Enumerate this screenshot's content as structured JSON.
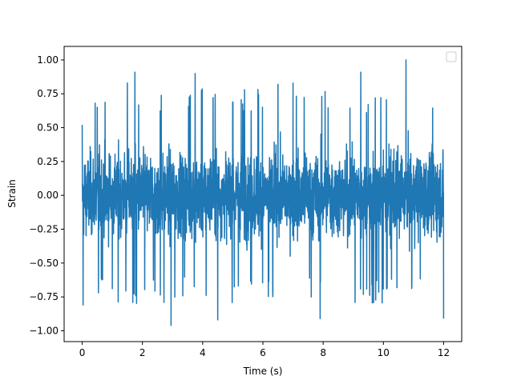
{
  "chart_data": {
    "type": "line",
    "title": "",
    "xlabel": "Time (s)",
    "ylabel": "Strain",
    "xlim": [
      -0.6,
      12.6
    ],
    "ylim": [
      -1.08,
      1.1
    ],
    "xticks": [
      0,
      2,
      4,
      6,
      8,
      10,
      12
    ],
    "xtick_labels": [
      "0",
      "2",
      "4",
      "6",
      "8",
      "10",
      "12"
    ],
    "yticks": [
      -1.0,
      -0.75,
      -0.5,
      -0.25,
      0.0,
      0.25,
      0.5,
      0.75,
      1.0
    ],
    "ytick_labels": [
      "−1.00",
      "−0.75",
      "−0.50",
      "−0.25",
      "0.00",
      "0.25",
      "0.50",
      "0.75",
      "1.00"
    ],
    "grid": false,
    "legend": "top-right (empty)",
    "series": [
      {
        "color": "#1f77b4",
        "description": "dense noisy signal",
        "x_start": 0,
        "x_end": 12,
        "typical_amplitude": 0.5,
        "peak_max": 1.0,
        "peak_min": -0.96,
        "peaks": [
          {
            "x": 0.0,
            "y": 0.52
          },
          {
            "x": 0.03,
            "y": -0.81
          },
          {
            "x": 0.5,
            "y": 0.65
          },
          {
            "x": 1.5,
            "y": 0.83
          },
          {
            "x": 1.75,
            "y": 0.91
          },
          {
            "x": 2.95,
            "y": -0.96
          },
          {
            "x": 3.75,
            "y": 0.9
          },
          {
            "x": 4.5,
            "y": -0.92
          },
          {
            "x": 6.5,
            "y": 0.82
          },
          {
            "x": 7.0,
            "y": 0.83
          },
          {
            "x": 7.9,
            "y": -0.91
          },
          {
            "x": 9.25,
            "y": 0.91
          },
          {
            "x": 10.75,
            "y": 1.0
          },
          {
            "x": 12.0,
            "y": -0.91
          }
        ]
      }
    ]
  }
}
